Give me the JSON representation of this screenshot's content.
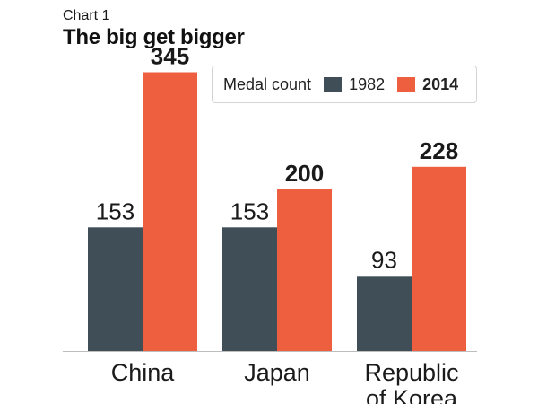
{
  "header": {
    "kicker": "Chart 1",
    "title": "The big get bigger"
  },
  "legend": {
    "label": "Medal count"
  },
  "colors": {
    "s1982": "#3f4e57",
    "s2014": "#ee5f40",
    "axis": "#bdbdbd"
  },
  "chart_data": {
    "type": "bar",
    "title": "The big get bigger",
    "subtitle": "Chart 1",
    "categories": [
      [
        "China"
      ],
      [
        "Japan"
      ],
      [
        "Republic",
        "of Korea"
      ]
    ],
    "series": [
      {
        "name": "1982",
        "values": [
          153,
          153,
          93
        ]
      },
      {
        "name": "2014",
        "values": [
          345,
          200,
          228
        ]
      }
    ],
    "xlabel": "",
    "ylabel": "Medal count",
    "ylim": [
      0,
      400
    ],
    "grid": false,
    "legend_position": "top-right"
  }
}
